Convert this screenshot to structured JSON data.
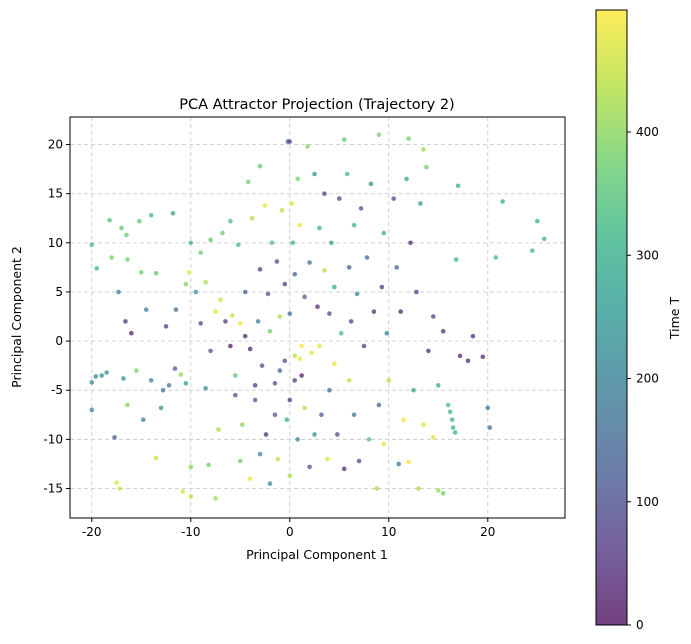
{
  "chart_data": {
    "type": "scatter",
    "title": "PCA Attractor Projection (Trajectory 2)",
    "xlabel": "Principal Component 1",
    "ylabel": "Principal Component 2",
    "xlim": [
      -22.2,
      27.8
    ],
    "ylim": [
      -18,
      22.8
    ],
    "x_ticks": [
      -20,
      -10,
      0,
      10,
      20
    ],
    "y_ticks": [
      -15,
      -10,
      -5,
      0,
      5,
      10,
      15,
      20
    ],
    "grid": true,
    "grid_style": "dashed",
    "colormap": "viridis",
    "point_alpha": 0.7,
    "colorbar": {
      "label": "Time T",
      "range": [
        0,
        499
      ],
      "ticks": [
        0,
        100,
        200,
        300,
        400
      ]
    },
    "points": [
      {
        "x": -20.0,
        "y": -7.0,
        "t": 200
      },
      {
        "x": -20.0,
        "y": -4.2,
        "t": 210
      },
      {
        "x": -19.6,
        "y": -3.6,
        "t": 215
      },
      {
        "x": -19.5,
        "y": 7.4,
        "t": 310
      },
      {
        "x": -20.0,
        "y": 9.8,
        "t": 330
      },
      {
        "x": -19.0,
        "y": -3.5,
        "t": 230
      },
      {
        "x": -18.5,
        "y": -3.2,
        "t": 240
      },
      {
        "x": -18.2,
        "y": 12.3,
        "t": 340
      },
      {
        "x": -18.0,
        "y": 8.5,
        "t": 380
      },
      {
        "x": -17.7,
        "y": -9.8,
        "t": 120
      },
      {
        "x": -17.5,
        "y": -14.4,
        "t": 470
      },
      {
        "x": -17.2,
        "y": -15.0,
        "t": 460
      },
      {
        "x": -17.3,
        "y": 5.0,
        "t": 200
      },
      {
        "x": -17.0,
        "y": 11.5,
        "t": 360
      },
      {
        "x": -16.8,
        "y": -3.8,
        "t": 240
      },
      {
        "x": -16.5,
        "y": 10.8,
        "t": 370
      },
      {
        "x": -16.6,
        "y": 2.0,
        "t": 40
      },
      {
        "x": -16.4,
        "y": 8.3,
        "t": 380
      },
      {
        "x": -16.0,
        "y": 0.8,
        "t": 30
      },
      {
        "x": -16.4,
        "y": -6.5,
        "t": 400
      },
      {
        "x": -15.5,
        "y": -3.0,
        "t": 390
      },
      {
        "x": -15.2,
        "y": 12.2,
        "t": 360
      },
      {
        "x": -15.0,
        "y": 7.0,
        "t": 370
      },
      {
        "x": -14.8,
        "y": -8.0,
        "t": 190
      },
      {
        "x": -14.5,
        "y": 3.2,
        "t": 190
      },
      {
        "x": -14.0,
        "y": 12.8,
        "t": 330
      },
      {
        "x": -14.0,
        "y": -4.0,
        "t": 200
      },
      {
        "x": -13.5,
        "y": -11.9,
        "t": 460
      },
      {
        "x": -13.5,
        "y": 6.9,
        "t": 360
      },
      {
        "x": -13.0,
        "y": -6.8,
        "t": 220
      },
      {
        "x": -12.8,
        "y": -5.0,
        "t": 170
      },
      {
        "x": -12.5,
        "y": 1.5,
        "t": 60
      },
      {
        "x": -12.2,
        "y": -4.5,
        "t": 180
      },
      {
        "x": -11.8,
        "y": 13.0,
        "t": 270
      },
      {
        "x": -11.6,
        "y": -2.8,
        "t": 120
      },
      {
        "x": -11.5,
        "y": 3.2,
        "t": 150
      },
      {
        "x": -11.0,
        "y": -3.4,
        "t": 410
      },
      {
        "x": -10.8,
        "y": -15.3,
        "t": 470
      },
      {
        "x": -10.5,
        "y": -4.3,
        "t": 260
      },
      {
        "x": -10.5,
        "y": 5.8,
        "t": 390
      },
      {
        "x": -10.2,
        "y": 7.0,
        "t": 480
      },
      {
        "x": -10.0,
        "y": -12.8,
        "t": 400
      },
      {
        "x": -10.0,
        "y": -15.8,
        "t": 450
      },
      {
        "x": -10.0,
        "y": 10.0,
        "t": 330
      },
      {
        "x": -9.5,
        "y": 5.0,
        "t": 230
      },
      {
        "x": -9.0,
        "y": 1.8,
        "t": 90
      },
      {
        "x": -9.0,
        "y": 9.0,
        "t": 380
      },
      {
        "x": -8.5,
        "y": 6.0,
        "t": 430
      },
      {
        "x": -8.5,
        "y": -4.8,
        "t": 230
      },
      {
        "x": -8.2,
        "y": -12.6,
        "t": 380
      },
      {
        "x": -8.0,
        "y": 10.3,
        "t": 360
      },
      {
        "x": -8.0,
        "y": -1.0,
        "t": 100
      },
      {
        "x": -7.5,
        "y": 3.0,
        "t": 480
      },
      {
        "x": -7.5,
        "y": -16.0,
        "t": 420
      },
      {
        "x": -7.2,
        "y": -9.0,
        "t": 430
      },
      {
        "x": -7.0,
        "y": 4.2,
        "t": 460
      },
      {
        "x": -6.8,
        "y": 11.0,
        "t": 370
      },
      {
        "x": -6.5,
        "y": 2.0,
        "t": 70
      },
      {
        "x": -6.0,
        "y": -0.5,
        "t": 10
      },
      {
        "x": -6.0,
        "y": 12.2,
        "t": 340
      },
      {
        "x": -5.8,
        "y": 2.6,
        "t": 450
      },
      {
        "x": -5.5,
        "y": -5.5,
        "t": 80
      },
      {
        "x": -5.5,
        "y": -3.5,
        "t": 350
      },
      {
        "x": -5.0,
        "y": 1.8,
        "t": 490
      },
      {
        "x": -5.0,
        "y": -12.2,
        "t": 380
      },
      {
        "x": -5.2,
        "y": 9.8,
        "t": 320
      },
      {
        "x": -4.8,
        "y": -8.5,
        "t": 400
      },
      {
        "x": -4.5,
        "y": 5.0,
        "t": 150
      },
      {
        "x": -4.5,
        "y": 0.5,
        "t": 30
      },
      {
        "x": -4.2,
        "y": 16.2,
        "t": 380
      },
      {
        "x": -4.0,
        "y": -14.0,
        "t": 480
      },
      {
        "x": -4.0,
        "y": -0.8,
        "t": 20
      },
      {
        "x": -3.8,
        "y": 12.5,
        "t": 440
      },
      {
        "x": -3.5,
        "y": -4.5,
        "t": 60
      },
      {
        "x": -3.5,
        "y": -6.0,
        "t": 120
      },
      {
        "x": -3.2,
        "y": 2.0,
        "t": 200
      },
      {
        "x": -3.0,
        "y": 17.8,
        "t": 360
      },
      {
        "x": -3.0,
        "y": -11.5,
        "t": 200
      },
      {
        "x": -3.0,
        "y": 7.3,
        "t": 60
      },
      {
        "x": -2.8,
        "y": -2.5,
        "t": 100
      },
      {
        "x": -2.5,
        "y": 13.8,
        "t": 480
      },
      {
        "x": -2.4,
        "y": -9.5,
        "t": 40
      },
      {
        "x": -2.2,
        "y": 4.8,
        "t": 110
      },
      {
        "x": -2.0,
        "y": -14.5,
        "t": 230
      },
      {
        "x": -2.0,
        "y": 1.0,
        "t": 380
      },
      {
        "x": -1.8,
        "y": 10.0,
        "t": 340
      },
      {
        "x": -1.5,
        "y": -4.3,
        "t": 100
      },
      {
        "x": -1.5,
        "y": -7.5,
        "t": 100
      },
      {
        "x": -1.3,
        "y": 8.1,
        "t": 90
      },
      {
        "x": -1.2,
        "y": -12.0,
        "t": 450
      },
      {
        "x": -1.0,
        "y": 2.5,
        "t": 430
      },
      {
        "x": -1.0,
        "y": -3.0,
        "t": 130
      },
      {
        "x": -0.8,
        "y": 13.3,
        "t": 440
      },
      {
        "x": -0.5,
        "y": 5.8,
        "t": 70
      },
      {
        "x": -0.5,
        "y": -2.0,
        "t": 100
      },
      {
        "x": -0.3,
        "y": -8.0,
        "t": 310
      },
      {
        "x": -0.2,
        "y": 20.3,
        "t": 140
      },
      {
        "x": 0.0,
        "y": 20.3,
        "t": 100
      },
      {
        "x": 0.0,
        "y": -13.7,
        "t": 430
      },
      {
        "x": 0.0,
        "y": 2.8,
        "t": 160
      },
      {
        "x": 0.0,
        "y": -6.0,
        "t": 60
      },
      {
        "x": 0.2,
        "y": 14.0,
        "t": 470
      },
      {
        "x": 0.3,
        "y": 10.0,
        "t": 310
      },
      {
        "x": 0.5,
        "y": -1.5,
        "t": 440
      },
      {
        "x": 0.5,
        "y": 6.8,
        "t": 130
      },
      {
        "x": 0.5,
        "y": -4.0,
        "t": 70
      },
      {
        "x": 0.8,
        "y": -10.0,
        "t": 220
      },
      {
        "x": 0.8,
        "y": 16.5,
        "t": 380
      },
      {
        "x": 1.0,
        "y": -1.8,
        "t": 480
      },
      {
        "x": 1.0,
        "y": 11.8,
        "t": 480
      },
      {
        "x": 1.2,
        "y": -0.5,
        "t": 490
      },
      {
        "x": 1.2,
        "y": -3.5,
        "t": 20
      },
      {
        "x": 1.5,
        "y": -6.8,
        "t": 440
      },
      {
        "x": 1.5,
        "y": 4.5,
        "t": 130
      },
      {
        "x": 1.8,
        "y": 19.8,
        "t": 390
      },
      {
        "x": 2.0,
        "y": -12.8,
        "t": 110
      },
      {
        "x": 2.0,
        "y": 8.0,
        "t": 170
      },
      {
        "x": 2.2,
        "y": -1.2,
        "t": 480
      },
      {
        "x": 2.5,
        "y": 17.0,
        "t": 240
      },
      {
        "x": 2.5,
        "y": -9.5,
        "t": 230
      },
      {
        "x": 2.8,
        "y": 3.5,
        "t": 40
      },
      {
        "x": 3.0,
        "y": -0.5,
        "t": 480
      },
      {
        "x": 3.0,
        "y": 11.5,
        "t": 310
      },
      {
        "x": 3.2,
        "y": -7.5,
        "t": 120
      },
      {
        "x": 3.5,
        "y": 15.0,
        "t": 70
      },
      {
        "x": 3.5,
        "y": 7.2,
        "t": 440
      },
      {
        "x": 3.8,
        "y": -12.0,
        "t": 470
      },
      {
        "x": 4.0,
        "y": 2.8,
        "t": 90
      },
      {
        "x": 4.0,
        "y": -5.0,
        "t": 160
      },
      {
        "x": 4.2,
        "y": 10.0,
        "t": 270
      },
      {
        "x": 4.5,
        "y": -2.3,
        "t": 480
      },
      {
        "x": 4.5,
        "y": 5.5,
        "t": 290
      },
      {
        "x": 4.8,
        "y": -9.5,
        "t": 80
      },
      {
        "x": 5.0,
        "y": 14.5,
        "t": 70
      },
      {
        "x": 5.2,
        "y": 0.8,
        "t": 330
      },
      {
        "x": 5.5,
        "y": 20.5,
        "t": 360
      },
      {
        "x": 5.5,
        "y": -13.0,
        "t": 40
      },
      {
        "x": 5.8,
        "y": 17.0,
        "t": 330
      },
      {
        "x": 6.0,
        "y": 7.5,
        "t": 120
      },
      {
        "x": 6.0,
        "y": -4.0,
        "t": 450
      },
      {
        "x": 6.2,
        "y": 2.0,
        "t": 60
      },
      {
        "x": 6.5,
        "y": 11.8,
        "t": 310
      },
      {
        "x": 6.5,
        "y": -7.5,
        "t": 180
      },
      {
        "x": 6.8,
        "y": 4.8,
        "t": 210
      },
      {
        "x": 7.0,
        "y": -12.2,
        "t": 90
      },
      {
        "x": 7.2,
        "y": 13.5,
        "t": 100
      },
      {
        "x": 7.5,
        "y": -0.5,
        "t": 60
      },
      {
        "x": 7.8,
        "y": 8.5,
        "t": 140
      },
      {
        "x": 8.0,
        "y": -10.0,
        "t": 350
      },
      {
        "x": 8.2,
        "y": 16.0,
        "t": 230
      },
      {
        "x": 8.5,
        "y": 3.0,
        "t": 40
      },
      {
        "x": 8.8,
        "y": -15.0,
        "t": 430
      },
      {
        "x": 9.0,
        "y": 21.0,
        "t": 380
      },
      {
        "x": 9.0,
        "y": -6.5,
        "t": 130
      },
      {
        "x": 9.3,
        "y": 5.5,
        "t": 60
      },
      {
        "x": 9.5,
        "y": 11.0,
        "t": 310
      },
      {
        "x": 9.5,
        "y": -10.5,
        "t": 480
      },
      {
        "x": 9.8,
        "y": 0.8,
        "t": 200
      },
      {
        "x": 10.0,
        "y": -4.0,
        "t": 440
      },
      {
        "x": 10.5,
        "y": 14.5,
        "t": 90
      },
      {
        "x": 10.8,
        "y": 7.5,
        "t": 130
      },
      {
        "x": 11.0,
        "y": -12.5,
        "t": 170
      },
      {
        "x": 11.2,
        "y": 3.0,
        "t": 20
      },
      {
        "x": 11.5,
        "y": -8.0,
        "t": 490
      },
      {
        "x": 11.8,
        "y": 16.5,
        "t": 280
      },
      {
        "x": 12.0,
        "y": 20.6,
        "t": 380
      },
      {
        "x": 12.0,
        "y": -12.3,
        "t": 490
      },
      {
        "x": 12.2,
        "y": 10.0,
        "t": 30
      },
      {
        "x": 12.5,
        "y": -5.0,
        "t": 270
      },
      {
        "x": 12.8,
        "y": 5.0,
        "t": 60
      },
      {
        "x": 13.0,
        "y": -15.0,
        "t": 430
      },
      {
        "x": 13.2,
        "y": 14.0,
        "t": 250
      },
      {
        "x": 13.5,
        "y": 19.5,
        "t": 420
      },
      {
        "x": 13.5,
        "y": -8.5,
        "t": 470
      },
      {
        "x": 13.8,
        "y": 17.7,
        "t": 380
      },
      {
        "x": 14.0,
        "y": -1.0,
        "t": 40
      },
      {
        "x": 14.5,
        "y": -9.8,
        "t": 480
      },
      {
        "x": 14.5,
        "y": 2.5,
        "t": 70
      },
      {
        "x": 15.0,
        "y": -15.2,
        "t": 410
      },
      {
        "x": 15.0,
        "y": -4.5,
        "t": 290
      },
      {
        "x": 15.5,
        "y": -15.5,
        "t": 370
      },
      {
        "x": 15.5,
        "y": 1.0,
        "t": 40
      },
      {
        "x": 16.0,
        "y": -6.5,
        "t": 330
      },
      {
        "x": 16.2,
        "y": -7.2,
        "t": 320
      },
      {
        "x": 16.4,
        "y": -8.0,
        "t": 315
      },
      {
        "x": 16.5,
        "y": -8.8,
        "t": 310
      },
      {
        "x": 16.7,
        "y": -9.3,
        "t": 305
      },
      {
        "x": 16.8,
        "y": 8.3,
        "t": 310
      },
      {
        "x": 17.0,
        "y": 15.8,
        "t": 300
      },
      {
        "x": 17.2,
        "y": -1.5,
        "t": 40
      },
      {
        "x": 18.0,
        "y": -2.0,
        "t": 30
      },
      {
        "x": 18.5,
        "y": 0.5,
        "t": 40
      },
      {
        "x": 19.5,
        "y": -1.6,
        "t": 40
      },
      {
        "x": 20.0,
        "y": -6.8,
        "t": 170
      },
      {
        "x": 20.2,
        "y": -8.8,
        "t": 160
      },
      {
        "x": 20.8,
        "y": 8.5,
        "t": 330
      },
      {
        "x": 21.5,
        "y": 14.2,
        "t": 300
      },
      {
        "x": 24.5,
        "y": 9.2,
        "t": 320
      },
      {
        "x": 25.0,
        "y": 12.2,
        "t": 310
      },
      {
        "x": 25.7,
        "y": 10.4,
        "t": 310
      }
    ]
  }
}
